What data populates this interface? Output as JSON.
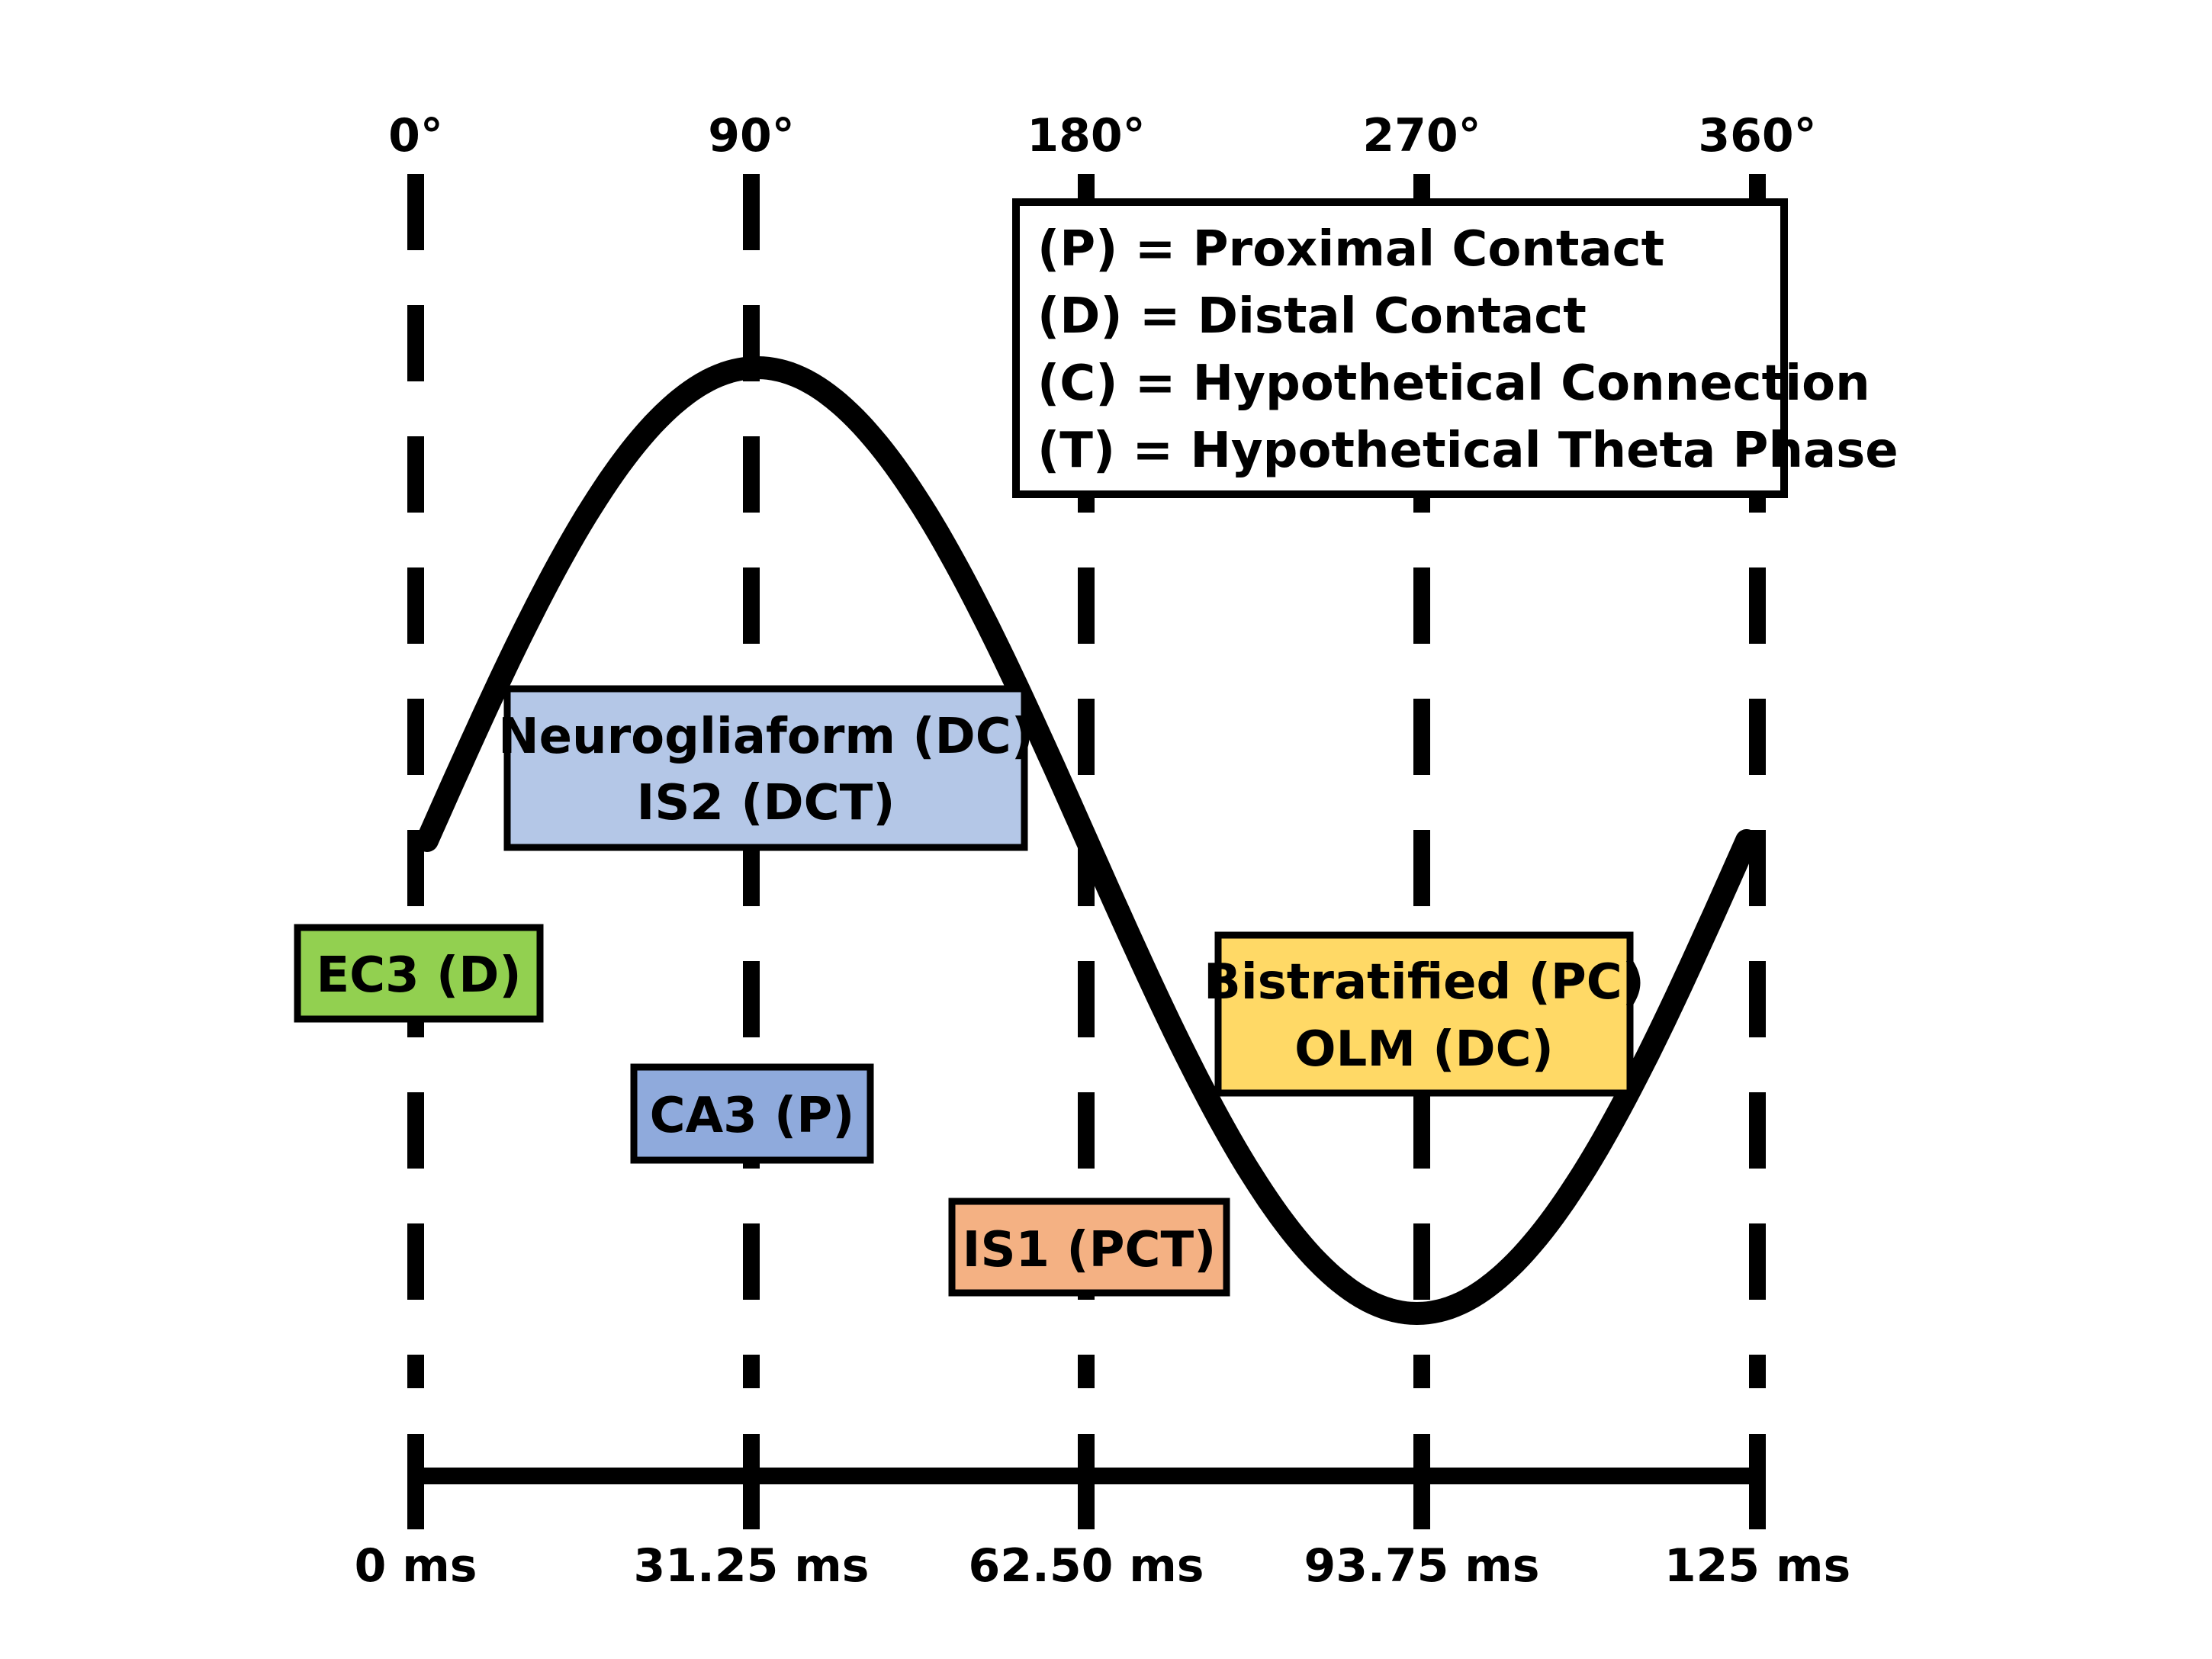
{
  "phase_labels": [
    "0°",
    "90°",
    "180°",
    "270°",
    "360°"
  ],
  "time_labels": [
    "0 ms",
    "31.25 ms",
    "62.50 ms",
    "93.75 ms",
    "125 ms"
  ],
  "legend": {
    "lines": [
      "(P) = Proximal Contact",
      "(D) = Distal Contact",
      "(C) = Hypothetical Connection",
      "(T) = Hypothetical Theta Phase"
    ]
  },
  "boxes": [
    {
      "id": "neurogliaform",
      "lines": [
        "Neurogliaform (DC)",
        "IS2 (DCT)"
      ],
      "color": "#b4c7e7"
    },
    {
      "id": "ec3",
      "lines": [
        "EC3 (D)"
      ],
      "color": "#92d050"
    },
    {
      "id": "ca3",
      "lines": [
        "CA3 (P)"
      ],
      "color": "#8faadc"
    },
    {
      "id": "is1",
      "lines": [
        "IS1 (PCT)"
      ],
      "color": "#f4b183"
    },
    {
      "id": "bistratified",
      "lines": [
        "Bistratified (PC)",
        "OLM (DC)"
      ],
      "color": "#ffd966"
    }
  ],
  "wave": {
    "type": "sine",
    "period_degrees": 360
  },
  "colors": {
    "line": "#000000",
    "background": "#ffffff"
  }
}
